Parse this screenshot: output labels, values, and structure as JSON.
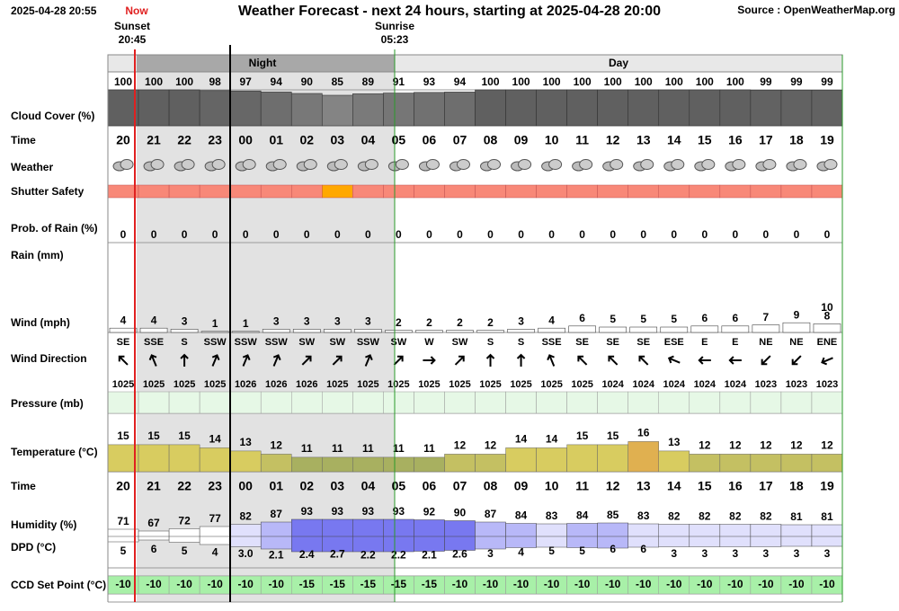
{
  "header": {
    "timestamp": "2025-04-28 20:55",
    "now_label": "Now",
    "title": "Weather Forecast - next 24 hours, starting at 2025-04-28 20:00",
    "source": "Source : OpenWeatherMap.org",
    "sunset_label": "Sunset",
    "sunset_time": "20:45",
    "sunrise_label": "Sunrise",
    "sunrise_time": "05:23",
    "night_label": "Night",
    "day_label": "Day"
  },
  "row_labels": [
    "Cloud Cover (%)",
    "Time",
    "Weather",
    "Shutter Safety",
    "Prob. of Rain (%)",
    "Rain (mm)",
    "Wind (mph)",
    "Wind Direction",
    "Pressure (mb)",
    "Temperature (°C)",
    "Time",
    "Humidity (%)",
    "DPD (°C)",
    "CCD Set Point (°C)"
  ],
  "hours": [
    "20",
    "21",
    "22",
    "23",
    "00",
    "01",
    "02",
    "03",
    "04",
    "05",
    "06",
    "07",
    "08",
    "09",
    "10",
    "11",
    "12",
    "13",
    "14",
    "15",
    "16",
    "17",
    "18",
    "19"
  ],
  "cloud_cover": [
    100,
    100,
    100,
    98,
    97,
    94,
    90,
    85,
    89,
    91,
    93,
    94,
    100,
    100,
    100,
    100,
    100,
    100,
    100,
    100,
    100,
    99,
    99,
    99
  ],
  "shutter_safety": [
    "#f88878",
    "#f88878",
    "#f88878",
    "#f88878",
    "#f88878",
    "#f88878",
    "#f88878",
    "#ffa800",
    "#f88878",
    "#f88878",
    "#f88878",
    "#f88878",
    "#f88878",
    "#f88878",
    "#f88878",
    "#f88878",
    "#f88878",
    "#f88878",
    "#f88878",
    "#f88878",
    "#f88878",
    "#f88878",
    "#f88878",
    "#f88878"
  ],
  "prob_rain": [
    0,
    0,
    0,
    0,
    0,
    0,
    0,
    0,
    0,
    0,
    0,
    0,
    0,
    0,
    0,
    0,
    0,
    0,
    0,
    0,
    0,
    0,
    0,
    0
  ],
  "wind": [
    4,
    4,
    3,
    1,
    1,
    3,
    3,
    3,
    3,
    2,
    2,
    2,
    2,
    3,
    4,
    6,
    5,
    5,
    5,
    6,
    6,
    7,
    9,
    8
  ],
  "wind_gust": [
    null,
    null,
    null,
    null,
    null,
    null,
    null,
    null,
    null,
    null,
    null,
    null,
    null,
    null,
    null,
    null,
    null,
    null,
    null,
    null,
    null,
    null,
    null,
    10
  ],
  "wind_direction": [
    "SE",
    "SSE",
    "S",
    "SSW",
    "SSW",
    "SSW",
    "SW",
    "SW",
    "SSW",
    "SW",
    "W",
    "SW",
    "S",
    "S",
    "SSE",
    "SE",
    "SE",
    "SE",
    "ESE",
    "E",
    "E",
    "NE",
    "NE",
    "ENE"
  ],
  "pressure": [
    1025,
    1025,
    1025,
    1025,
    1026,
    1026,
    1026,
    1025,
    1025,
    1025,
    1025,
    1025,
    1025,
    1025,
    1025,
    1025,
    1024,
    1024,
    1024,
    1024,
    1024,
    1023,
    1023,
    1023
  ],
  "temperature": [
    15,
    15,
    15,
    14,
    13,
    12,
    11,
    11,
    11,
    11,
    11,
    12,
    12,
    14,
    14,
    15,
    15,
    16,
    13,
    12,
    12,
    12,
    12,
    12
  ],
  "humidity": [
    71,
    67,
    72,
    77,
    82,
    87,
    93,
    93,
    93,
    93,
    92,
    90,
    87,
    84,
    83,
    84,
    85,
    83,
    82,
    82,
    82,
    82,
    81,
    81
  ],
  "dpd": {
    "values": [
      5,
      6,
      5,
      4,
      3,
      2.1,
      2.4,
      2.7,
      2.2,
      2.2,
      2.1,
      2.6,
      3,
      4,
      5,
      5,
      6,
      6,
      3,
      3,
      3,
      3,
      3,
      3
    ],
    "value_labels": [
      "5",
      "6",
      "5",
      "4",
      "3.0",
      "2.1",
      "2.4",
      "2.7",
      "2.2",
      "2.2",
      "2.1",
      "2.6",
      "3",
      "4",
      "5",
      "5",
      "6",
      "6",
      "3",
      "3",
      "3",
      "3",
      "3",
      "3"
    ]
  },
  "ccd_set_point": [
    -10,
    -10,
    -10,
    -10,
    -10,
    -10,
    -15,
    -15,
    -15,
    -15,
    -15,
    -10,
    -10,
    -10,
    -10,
    -10,
    -10,
    -10,
    -10,
    -10,
    -10,
    -10,
    -10,
    -10
  ]
}
